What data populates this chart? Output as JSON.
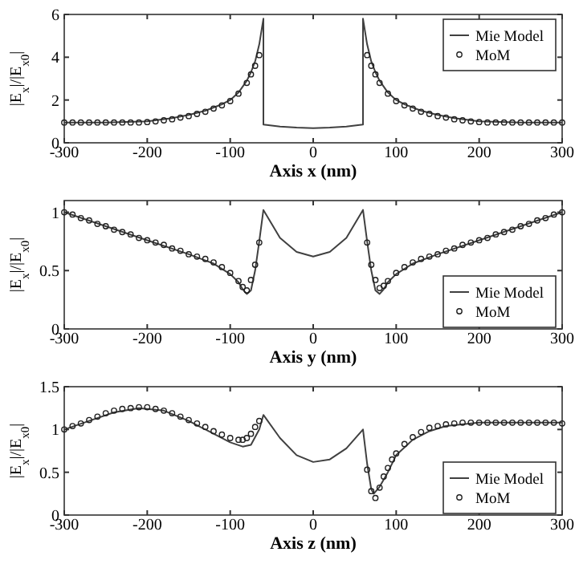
{
  "chart_data": [
    {
      "type": "line",
      "xlabel": "Axis x (nm)",
      "ylabel": "|E$_{x}$|/|E$_{x0}$|",
      "xlim": [
        -300,
        300
      ],
      "xticks": [
        -300,
        -200,
        -100,
        0,
        100,
        200,
        300
      ],
      "ylim": [
        0,
        6
      ],
      "yticks": [
        0,
        2,
        4,
        6
      ],
      "legend": "top right",
      "grid": false,
      "series": [
        {
          "name": "Mie Model",
          "color": "#404040",
          "marker": "none",
          "x": [
            -300,
            -250,
            -200,
            -170,
            -150,
            -130,
            -120,
            -110,
            -100,
            -90,
            -80,
            -75,
            -70,
            -65,
            -60,
            -60,
            -40,
            -20,
            0,
            20,
            40,
            60,
            60,
            65,
            70,
            75,
            80,
            90,
            100,
            110,
            120,
            130,
            150,
            170,
            200,
            250,
            300
          ],
          "values": [
            0.95,
            0.95,
            1.0,
            1.15,
            1.3,
            1.5,
            1.65,
            1.8,
            2.0,
            2.35,
            2.9,
            3.3,
            3.8,
            4.6,
            5.8,
            0.85,
            0.76,
            0.71,
            0.68,
            0.71,
            0.76,
            0.85,
            5.8,
            4.6,
            3.8,
            3.3,
            2.9,
            2.35,
            2.0,
            1.8,
            1.65,
            1.5,
            1.3,
            1.15,
            1.0,
            0.95,
            0.95
          ]
        },
        {
          "name": "MoM",
          "type": "scatter",
          "color": "#202020",
          "marker": "circle",
          "x": [
            -300,
            -290,
            -280,
            -270,
            -260,
            -250,
            -240,
            -230,
            -220,
            -210,
            -200,
            -190,
            -180,
            -170,
            -160,
            -150,
            -140,
            -130,
            -120,
            -110,
            -100,
            -90,
            -80,
            -75,
            -70,
            -65,
            65,
            70,
            75,
            80,
            90,
            100,
            110,
            120,
            130,
            140,
            150,
            160,
            170,
            180,
            190,
            200,
            210,
            220,
            230,
            240,
            250,
            260,
            270,
            280,
            290,
            300
          ],
          "values": [
            0.95,
            0.95,
            0.95,
            0.95,
            0.95,
            0.95,
            0.95,
            0.95,
            0.95,
            0.95,
            0.97,
            1.0,
            1.05,
            1.1,
            1.18,
            1.25,
            1.35,
            1.45,
            1.6,
            1.75,
            1.95,
            2.3,
            2.8,
            3.2,
            3.6,
            4.1,
            4.1,
            3.6,
            3.2,
            2.8,
            2.3,
            1.95,
            1.75,
            1.6,
            1.45,
            1.35,
            1.25,
            1.18,
            1.1,
            1.05,
            1.0,
            0.97,
            0.95,
            0.95,
            0.95,
            0.95,
            0.95,
            0.95,
            0.95,
            0.95,
            0.95,
            0.95
          ]
        }
      ]
    },
    {
      "type": "line",
      "xlabel": "Axis y (nm)",
      "ylabel": "|E$_{x}$|/|E$_{x0}$|",
      "xlim": [
        -300,
        300
      ],
      "xticks": [
        -300,
        -200,
        -100,
        0,
        100,
        200,
        300
      ],
      "ylim": [
        0,
        1.1
      ],
      "yticks": [
        0,
        0.5,
        1
      ],
      "legend": "bottom right",
      "grid": false,
      "series": [
        {
          "name": "Mie Model",
          "color": "#404040",
          "marker": "none",
          "x": [
            -300,
            -250,
            -200,
            -150,
            -120,
            -100,
            -90,
            -85,
            -80,
            -75,
            -70,
            -65,
            -60,
            -40,
            -20,
            0,
            20,
            40,
            60,
            65,
            70,
            75,
            80,
            85,
            90,
            100,
            120,
            150,
            200,
            250,
            300
          ],
          "values": [
            1.0,
            0.88,
            0.76,
            0.64,
            0.56,
            0.47,
            0.4,
            0.34,
            0.3,
            0.33,
            0.5,
            0.75,
            1.02,
            0.78,
            0.66,
            0.62,
            0.66,
            0.78,
            1.02,
            0.75,
            0.5,
            0.33,
            0.3,
            0.34,
            0.4,
            0.47,
            0.56,
            0.64,
            0.76,
            0.88,
            1.0
          ]
        },
        {
          "name": "MoM",
          "type": "scatter",
          "color": "#202020",
          "marker": "circle",
          "x": [
            -300,
            -290,
            -280,
            -270,
            -260,
            -250,
            -240,
            -230,
            -220,
            -210,
            -200,
            -190,
            -180,
            -170,
            -160,
            -150,
            -140,
            -130,
            -120,
            -110,
            -100,
            -90,
            -85,
            -80,
            -75,
            -70,
            -65,
            65,
            70,
            75,
            80,
            85,
            90,
            100,
            110,
            120,
            130,
            140,
            150,
            160,
            170,
            180,
            190,
            200,
            210,
            220,
            230,
            240,
            250,
            260,
            270,
            280,
            290,
            300
          ],
          "values": [
            1.0,
            0.98,
            0.95,
            0.93,
            0.9,
            0.88,
            0.85,
            0.83,
            0.81,
            0.78,
            0.76,
            0.74,
            0.72,
            0.69,
            0.67,
            0.64,
            0.62,
            0.6,
            0.57,
            0.53,
            0.48,
            0.41,
            0.36,
            0.33,
            0.42,
            0.55,
            0.74,
            0.74,
            0.55,
            0.42,
            0.35,
            0.37,
            0.41,
            0.48,
            0.53,
            0.57,
            0.6,
            0.62,
            0.64,
            0.67,
            0.69,
            0.72,
            0.74,
            0.76,
            0.78,
            0.81,
            0.83,
            0.85,
            0.88,
            0.9,
            0.93,
            0.95,
            0.98,
            1.0
          ]
        }
      ]
    },
    {
      "type": "line",
      "xlabel": "Axis z (nm)",
      "ylabel": "|E$_{x}$|/|E$_{x0}$|",
      "xlim": [
        -300,
        300
      ],
      "xticks": [
        -300,
        -200,
        -100,
        0,
        100,
        200,
        300
      ],
      "ylim": [
        0,
        1.5
      ],
      "yticks": [
        0,
        0.5,
        1,
        1.5
      ],
      "legend": "bottom right",
      "grid": false,
      "series": [
        {
          "name": "Mie Model",
          "color": "#404040",
          "marker": "none",
          "x": [
            -300,
            -270,
            -240,
            -210,
            -180,
            -150,
            -120,
            -100,
            -85,
            -75,
            -65,
            -60,
            -40,
            -20,
            0,
            20,
            40,
            60,
            65,
            70,
            73,
            80,
            90,
            100,
            120,
            140,
            160,
            200,
            300
          ],
          "values": [
            1.0,
            1.1,
            1.2,
            1.25,
            1.22,
            1.1,
            0.95,
            0.85,
            0.8,
            0.82,
            1.0,
            1.17,
            0.9,
            0.7,
            0.62,
            0.65,
            0.78,
            1.0,
            0.6,
            0.3,
            0.25,
            0.33,
            0.5,
            0.7,
            0.88,
            0.98,
            1.04,
            1.08,
            1.08
          ]
        },
        {
          "name": "MoM",
          "type": "scatter",
          "color": "#202020",
          "marker": "circle",
          "x": [
            -300,
            -290,
            -280,
            -270,
            -260,
            -250,
            -240,
            -230,
            -220,
            -210,
            -200,
            -190,
            -180,
            -170,
            -160,
            -150,
            -140,
            -130,
            -120,
            -110,
            -100,
            -90,
            -85,
            -80,
            -75,
            -70,
            -65,
            65,
            70,
            75,
            80,
            85,
            90,
            95,
            100,
            110,
            120,
            130,
            140,
            150,
            160,
            170,
            180,
            190,
            200,
            210,
            220,
            230,
            240,
            250,
            260,
            270,
            280,
            290,
            300
          ],
          "values": [
            1.0,
            1.04,
            1.07,
            1.11,
            1.15,
            1.19,
            1.22,
            1.24,
            1.25,
            1.26,
            1.26,
            1.24,
            1.22,
            1.19,
            1.15,
            1.11,
            1.07,
            1.03,
            0.98,
            0.94,
            0.9,
            0.88,
            0.88,
            0.9,
            0.95,
            1.03,
            1.1,
            0.53,
            0.28,
            0.2,
            0.32,
            0.45,
            0.55,
            0.65,
            0.72,
            0.83,
            0.91,
            0.97,
            1.02,
            1.04,
            1.06,
            1.07,
            1.08,
            1.08,
            1.08,
            1.08,
            1.08,
            1.08,
            1.08,
            1.08,
            1.08,
            1.08,
            1.08,
            1.08,
            1.07
          ]
        }
      ]
    }
  ]
}
